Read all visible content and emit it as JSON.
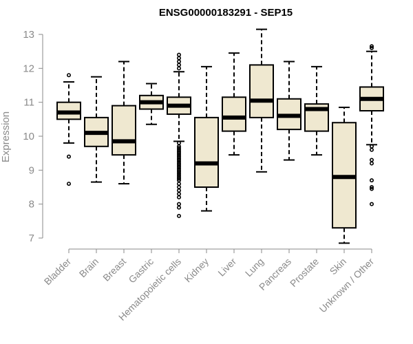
{
  "chart_data": {
    "type": "boxplot",
    "title": "ENSG00000183291 - SEP15",
    "xlabel": "",
    "ylabel": "Expression",
    "ylim": [
      7,
      13
    ],
    "yticks": [
      7,
      8,
      9,
      10,
      11,
      12,
      13
    ],
    "colors": {
      "box_fill": "#efe8d0",
      "stroke": "#000000",
      "axis": "#8a8a8a"
    },
    "categories": [
      "Bladder",
      "Brain",
      "Breast",
      "Gastric",
      "Hematopoietic cells",
      "Kidney",
      "Liver",
      "Lung",
      "Pancreas",
      "Prostate",
      "Skin",
      "Unknown / Other"
    ],
    "boxes": [
      {
        "min": 9.8,
        "q1": 10.5,
        "median": 10.7,
        "q3": 11.0,
        "max": 11.6,
        "outliers": [
          11.8,
          9.4,
          8.6
        ]
      },
      {
        "min": 8.65,
        "q1": 9.7,
        "median": 10.1,
        "q3": 10.55,
        "max": 11.75,
        "outliers": []
      },
      {
        "min": 8.6,
        "q1": 9.45,
        "median": 9.85,
        "q3": 10.9,
        "max": 12.2,
        "outliers": []
      },
      {
        "min": 10.35,
        "q1": 10.8,
        "median": 11.0,
        "q3": 11.2,
        "max": 11.55,
        "outliers": []
      },
      {
        "min": 9.85,
        "q1": 10.65,
        "median": 10.9,
        "q3": 11.15,
        "max": 11.9,
        "outliers": [
          12.4,
          12.3,
          12.2,
          12.1,
          12.0,
          9.8,
          9.7,
          9.65,
          9.6,
          9.55,
          9.5,
          9.45,
          9.4,
          9.35,
          9.3,
          9.25,
          9.2,
          9.15,
          9.1,
          9.05,
          9.0,
          8.95,
          8.9,
          8.85,
          8.8,
          8.75,
          8.7,
          8.6,
          8.5,
          8.4,
          8.3,
          8.2,
          8.0,
          7.9,
          7.65
        ]
      },
      {
        "min": 7.8,
        "q1": 8.5,
        "median": 9.2,
        "q3": 10.55,
        "max": 12.05,
        "outliers": []
      },
      {
        "min": 9.45,
        "q1": 10.15,
        "median": 10.55,
        "q3": 11.15,
        "max": 12.45,
        "outliers": []
      },
      {
        "min": 8.95,
        "q1": 10.55,
        "median": 11.05,
        "q3": 12.1,
        "max": 13.15,
        "outliers": []
      },
      {
        "min": 9.3,
        "q1": 10.2,
        "median": 10.6,
        "q3": 11.1,
        "max": 12.2,
        "outliers": []
      },
      {
        "min": 9.45,
        "q1": 10.15,
        "median": 10.8,
        "q3": 10.95,
        "max": 12.05,
        "outliers": []
      },
      {
        "min": 6.85,
        "q1": 7.3,
        "median": 8.8,
        "q3": 10.4,
        "max": 10.85,
        "outliers": []
      },
      {
        "min": 9.75,
        "q1": 10.75,
        "median": 11.1,
        "q3": 11.45,
        "max": 12.5,
        "outliers": [
          12.65,
          12.6,
          9.7,
          9.6,
          9.3,
          9.2,
          8.7,
          8.5,
          8.45,
          8.0
        ]
      }
    ]
  }
}
